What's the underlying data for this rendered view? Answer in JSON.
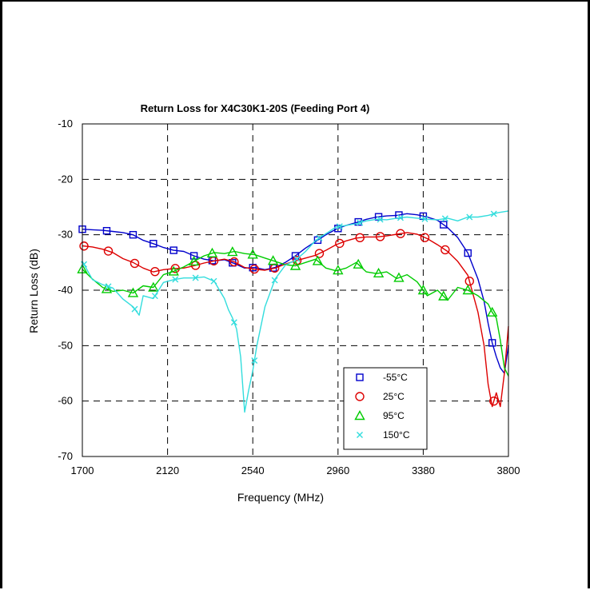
{
  "chart_data": {
    "type": "line",
    "title": "Return Loss for X4C30K1-20S (Feeding Port 4)",
    "xlabel": "Frequency (MHz)",
    "ylabel": "Return Loss (dB)",
    "xlim": [
      1700,
      3800
    ],
    "ylim": [
      -70,
      -10
    ],
    "xticks": [
      1700,
      2120,
      2540,
      2960,
      3380,
      3800
    ],
    "yticks": [
      -70,
      -60,
      -50,
      -40,
      -30,
      -20,
      -10
    ],
    "grid": true,
    "legend_position": "bottom-right",
    "series": [
      {
        "name": "-55°C",
        "color": "#0000cc",
        "marker": "square",
        "x": [
          1700,
          1750,
          1800,
          1850,
          1900,
          1950,
          2000,
          2050,
          2100,
          2150,
          2200,
          2250,
          2300,
          2350,
          2400,
          2450,
          2500,
          2550,
          2600,
          2650,
          2700,
          2750,
          2800,
          2850,
          2900,
          2950,
          3000,
          3050,
          3100,
          3150,
          3200,
          3250,
          3300,
          3350,
          3400,
          3450,
          3500,
          3550,
          3600,
          3650,
          3680,
          3700,
          3720,
          3740,
          3760,
          3780,
          3800
        ],
        "y": [
          -29,
          -29.1,
          -29.2,
          -29.4,
          -29.6,
          -30,
          -31,
          -31.6,
          -32.3,
          -32.8,
          -33,
          -33.8,
          -34.4,
          -34.7,
          -34.5,
          -35.2,
          -36,
          -35.9,
          -36.3,
          -35.9,
          -35,
          -33.8,
          -32.4,
          -31.2,
          -30,
          -29,
          -28.3,
          -27.8,
          -27.2,
          -26.8,
          -26.6,
          -26.5,
          -26.2,
          -26.4,
          -26.8,
          -27.4,
          -28.7,
          -30.5,
          -33.3,
          -38,
          -42,
          -46,
          -49.5,
          -52,
          -54,
          -55,
          -50
        ]
      },
      {
        "name": "25°C",
        "color": "#dd0000",
        "marker": "circle",
        "x": [
          1700,
          1750,
          1800,
          1850,
          1900,
          1950,
          2000,
          2050,
          2100,
          2150,
          2200,
          2250,
          2300,
          2350,
          2400,
          2450,
          2500,
          2550,
          2600,
          2650,
          2700,
          2750,
          2800,
          2850,
          2900,
          2950,
          3000,
          3050,
          3100,
          3150,
          3200,
          3250,
          3300,
          3350,
          3400,
          3450,
          3500,
          3550,
          3600,
          3650,
          3680,
          3700,
          3720,
          3740,
          3760,
          3780,
          3800
        ],
        "y": [
          -32,
          -32.2,
          -32.6,
          -33.2,
          -34.3,
          -35,
          -36,
          -36.7,
          -36.3,
          -36.1,
          -36,
          -35.6,
          -35.1,
          -34.7,
          -34.4,
          -34.9,
          -35.9,
          -36.2,
          -36.4,
          -36,
          -35.3,
          -34.7,
          -34.2,
          -33.7,
          -32.8,
          -31.8,
          -31.1,
          -30.6,
          -30.4,
          -30.4,
          -30.2,
          -29.9,
          -29.6,
          -29.9,
          -30.7,
          -31.8,
          -33,
          -34.8,
          -37.3,
          -44,
          -50,
          -57,
          -61,
          -58.5,
          -61,
          -55,
          -46.5
        ]
      },
      {
        "name": "95°C",
        "color": "#00cc00",
        "marker": "triangle",
        "x": [
          1700,
          1750,
          1800,
          1850,
          1900,
          1950,
          2000,
          2050,
          2100,
          2150,
          2200,
          2250,
          2300,
          2350,
          2400,
          2450,
          2500,
          2550,
          2600,
          2650,
          2700,
          2750,
          2800,
          2850,
          2900,
          2950,
          3000,
          3050,
          3100,
          3150,
          3200,
          3250,
          3300,
          3350,
          3400,
          3450,
          3500,
          3550,
          3600,
          3650,
          3700,
          3720,
          3740,
          3760,
          3780,
          3800
        ],
        "y": [
          -36.2,
          -38,
          -39.5,
          -40.2,
          -40,
          -40.5,
          -39.2,
          -39.5,
          -37.2,
          -36.6,
          -35.8,
          -34.8,
          -33.8,
          -33.2,
          -33.4,
          -33,
          -33.4,
          -33.6,
          -34.2,
          -34.8,
          -35.4,
          -35.6,
          -35,
          -34.4,
          -36,
          -36.5,
          -36,
          -35,
          -36.7,
          -37,
          -36.7,
          -37.9,
          -37.2,
          -38.5,
          -41,
          -40,
          -41.8,
          -39.5,
          -40,
          -41,
          -42.5,
          -44,
          -45,
          -49,
          -54,
          -55.5
        ]
      },
      {
        "name": "150°C",
        "color": "#33dddd",
        "marker": "x",
        "x": [
          1700,
          1750,
          1800,
          1850,
          1900,
          1950,
          1980,
          2000,
          2050,
          2100,
          2150,
          2200,
          2250,
          2300,
          2350,
          2400,
          2420,
          2440,
          2460,
          2480,
          2500,
          2520,
          2540,
          2560,
          2600,
          2650,
          2700,
          2750,
          2800,
          2850,
          2900,
          2950,
          3000,
          3050,
          3100,
          3150,
          3200,
          3250,
          3300,
          3350,
          3400,
          3450,
          3500,
          3550,
          3600,
          3650,
          3700,
          3750,
          3800
        ],
        "y": [
          -34.8,
          -38.1,
          -39,
          -39.6,
          -41.6,
          -43,
          -44.5,
          -41,
          -41.5,
          -38.6,
          -38.1,
          -37.8,
          -37.8,
          -37.6,
          -38.4,
          -41.5,
          -43.5,
          -45,
          -47,
          -52,
          -62,
          -58,
          -54.5,
          -50,
          -43,
          -38,
          -35.5,
          -34.6,
          -33,
          -31,
          -29.8,
          -28.6,
          -28.3,
          -28,
          -27.5,
          -27.2,
          -27.3,
          -27,
          -26.8,
          -27,
          -27.2,
          -27.3,
          -27,
          -27.5,
          -26.8,
          -26.8,
          -26.5,
          -26,
          -25.7
        ]
      }
    ]
  }
}
